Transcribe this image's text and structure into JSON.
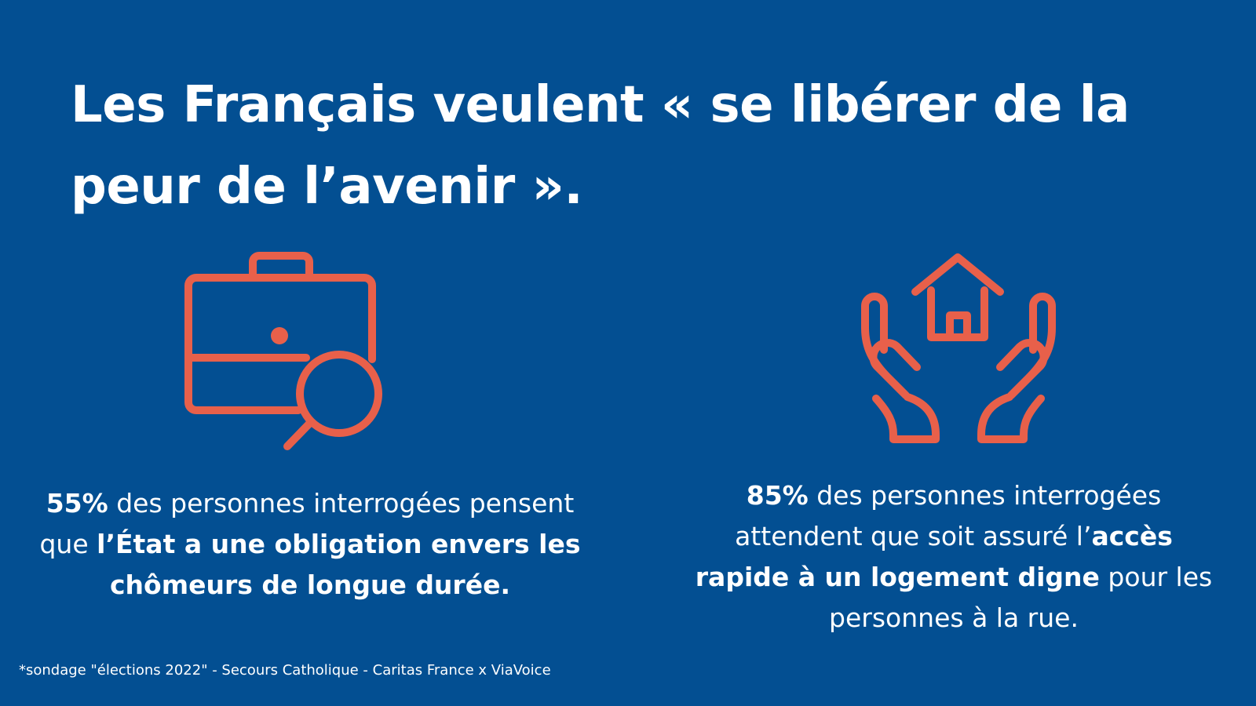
{
  "title": {
    "line1": "Les Français veulent « se libérer de la",
    "line2": "peur de l’avenir »."
  },
  "icons": {
    "left": "briefcase-search-icon",
    "right": "hands-house-icon",
    "accent_color": "#e8604a"
  },
  "stats": {
    "left": {
      "percent": "55%",
      "text1": " des personnes interrogées pensent",
      "text2": "que ",
      "bold1": "l’État a une obligation envers les",
      "bold2": "chômeurs de longue durée."
    },
    "right": {
      "percent": "85%",
      "text1": " des personnes interrogées",
      "text2": "attendent que soit assuré l’",
      "bold1": "accès",
      "bold2": "rapide à un logement digne",
      "text3": " pour les",
      "text4": "personnes à la rue."
    }
  },
  "footnote": "*sondage \"élections 2022\" - Secours Catholique - Caritas France x ViaVoice",
  "colors": {
    "background": "#034f92",
    "text": "#ffffff"
  }
}
